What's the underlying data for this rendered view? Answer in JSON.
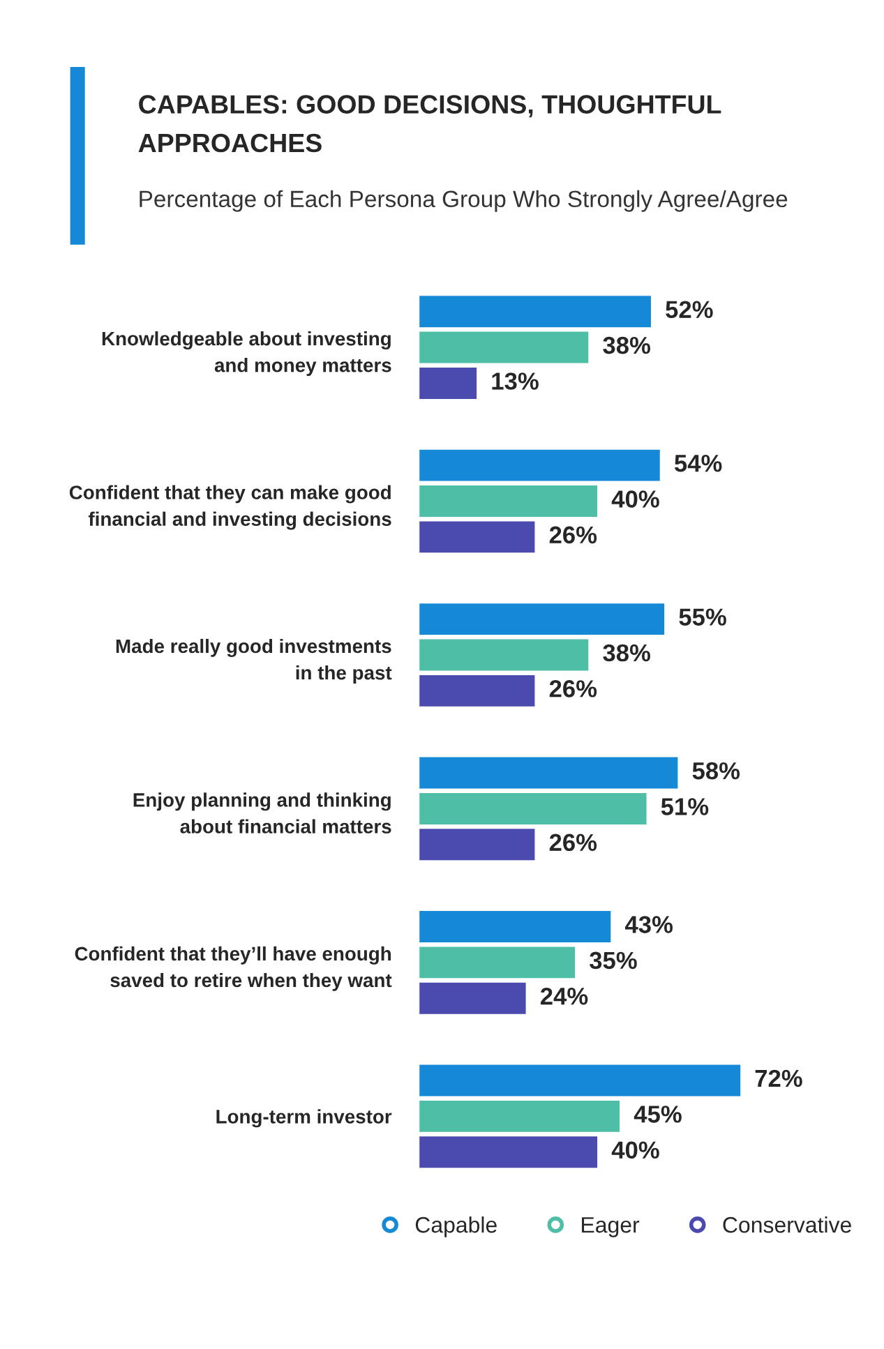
{
  "chart_data": {
    "type": "bar",
    "orientation": "horizontal",
    "title": "CAPABLES: GOOD DECISIONS, THOUGHTFUL\nAPPROACHES",
    "subtitle": "Percentage of Each Persona Group Who Strongly Agree/Agree",
    "categories": [
      "Knowledgeable about investing\nand money matters",
      "Confident that they can make good\nfinancial and investing decisions",
      "Made really good investments\nin the past",
      "Enjoy planning and thinking\nabout financial matters",
      "Confident that they’ll have enough\nsaved to retire when they want",
      "Long-term investor"
    ],
    "series": [
      {
        "name": "Capable",
        "color": "#1689d6",
        "values": [
          52,
          54,
          55,
          58,
          43,
          72
        ],
        "value_labels": [
          "52%",
          "54%",
          "55%",
          "58%",
          "43%",
          "72%"
        ]
      },
      {
        "name": "Eager",
        "color": "#4fbea6",
        "values": [
          38,
          40,
          38,
          51,
          35,
          45
        ],
        "value_labels": [
          "38%",
          "40%",
          "38%",
          "51%",
          "35%",
          "45%"
        ]
      },
      {
        "name": "Conservative",
        "color": "#4a4aaf",
        "values": [
          13,
          26,
          26,
          26,
          24,
          40
        ],
        "value_labels": [
          "13%",
          "26%",
          "26%",
          "26%",
          "24%",
          "40%"
        ]
      }
    ],
    "legend": "bottom",
    "grid": false,
    "tick_labels": "y"
  }
}
